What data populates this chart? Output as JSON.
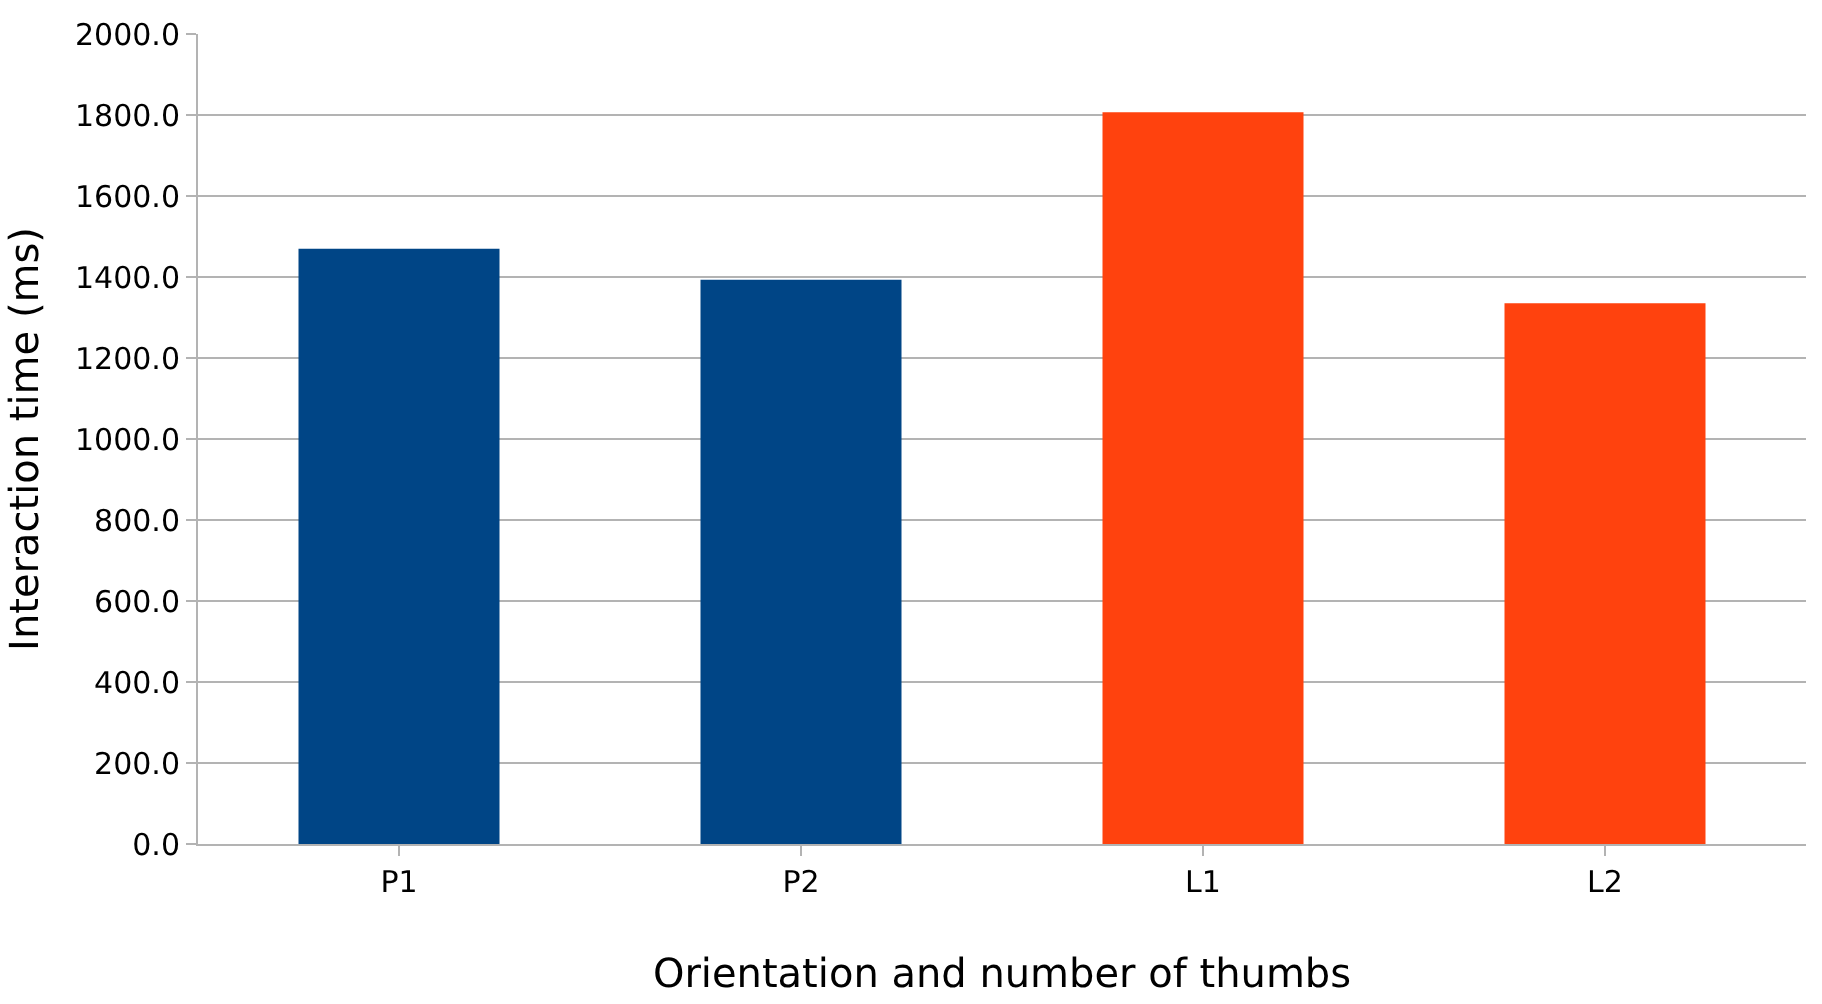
{
  "chart_data": {
    "type": "bar",
    "xlabel": "Orientation and number of thumbs",
    "ylabel": "Interaction time (ms)",
    "categories": [
      "P1",
      "P2",
      "L1",
      "L2"
    ],
    "values": [
      1470,
      1393,
      1807,
      1335
    ],
    "colors": [
      "#004586",
      "#004586",
      "#ff420e",
      "#ff420e"
    ],
    "ylim": [
      0,
      2000
    ],
    "yticks": [
      {
        "value": 0,
        "label": "0.0"
      },
      {
        "value": 200,
        "label": "200.0"
      },
      {
        "value": 400,
        "label": "400.0"
      },
      {
        "value": 600,
        "label": "600.0"
      },
      {
        "value": 800,
        "label": "800.0"
      },
      {
        "value": 1000,
        "label": "1000.0"
      },
      {
        "value": 1200,
        "label": "1200.0"
      },
      {
        "value": 1400,
        "label": "1400.0"
      },
      {
        "value": 1600,
        "label": "1600.0"
      },
      {
        "value": 1800,
        "label": "1800.0"
      },
      {
        "value": 2000,
        "label": "2000.0"
      }
    ],
    "grid": "y"
  }
}
